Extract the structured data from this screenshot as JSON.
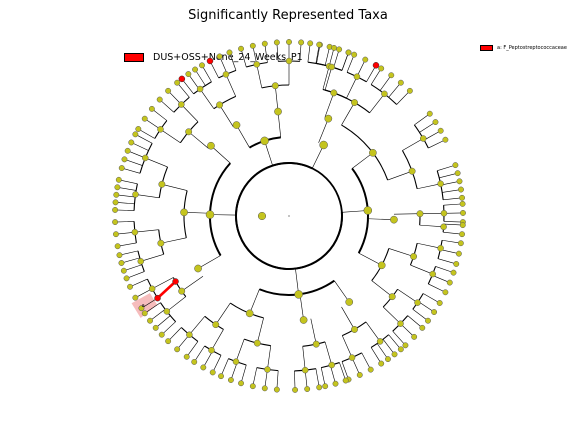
{
  "title": "Significantly Represented Taxa",
  "legend": {
    "class_label": "DUS+OSS+None_24_Weeks_P1",
    "class_color": "#ff0000"
  },
  "side_legend": {
    "label": "a: F_Peptostreptococcaceae",
    "color": "#ff0000"
  },
  "highlight": {
    "letter": "a",
    "color": "#ff0000",
    "shade_color": "#f4b0b0"
  },
  "colors": {
    "node": "#c4c41e",
    "node_stroke": "#555555",
    "enriched": "#ff0000",
    "edge": "#000000"
  }
}
